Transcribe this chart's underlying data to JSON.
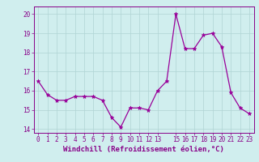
{
  "x": [
    0,
    1,
    2,
    3,
    4,
    5,
    6,
    7,
    8,
    9,
    10,
    11,
    12,
    13,
    14,
    15,
    16,
    17,
    18,
    19,
    20,
    21,
    22,
    23
  ],
  "y": [
    16.5,
    15.8,
    15.5,
    15.5,
    15.7,
    15.7,
    15.7,
    15.5,
    14.6,
    14.1,
    15.1,
    15.1,
    15.0,
    16.0,
    16.5,
    20.0,
    18.2,
    18.2,
    18.9,
    19.0,
    18.3,
    15.9,
    15.1,
    14.8
  ],
  "line_color": "#990099",
  "marker": "*",
  "marker_size": 3.5,
  "bg_color": "#d0eeee",
  "grid_color": "#b0d4d4",
  "xlabel": "Windchill (Refroidissement éolien,°C)",
  "xlim": [
    -0.5,
    23.5
  ],
  "ylim": [
    13.8,
    20.4
  ],
  "yticks": [
    14,
    15,
    16,
    17,
    18,
    19,
    20
  ],
  "xticks": [
    0,
    1,
    2,
    3,
    4,
    5,
    6,
    7,
    8,
    9,
    10,
    11,
    12,
    13,
    15,
    16,
    17,
    18,
    19,
    20,
    21,
    22,
    23
  ],
  "tick_color": "#880088",
  "label_color": "#880088",
  "xlabel_fontsize": 6.5,
  "tick_fontsize": 5.5
}
